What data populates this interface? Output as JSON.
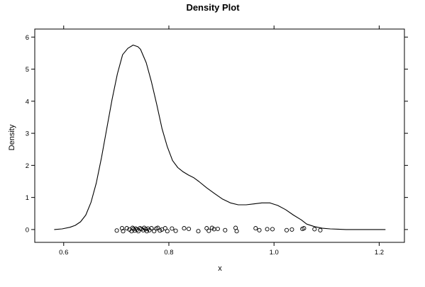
{
  "chart_data": {
    "type": "line",
    "title": "Density Plot",
    "xlabel": "x",
    "ylabel": "Density",
    "xlim": [
      0.545,
      1.248
    ],
    "ylim": [
      -0.4,
      6.25
    ],
    "grid": false,
    "x_ticks": [
      0.6,
      0.8,
      1.0,
      1.2
    ],
    "x_tick_labels": [
      "0.6",
      "0.8",
      "1.0",
      "1.2"
    ],
    "y_ticks": [
      0,
      1,
      2,
      3,
      4,
      5,
      6
    ],
    "y_tick_labels": [
      "0",
      "1",
      "2",
      "3",
      "4",
      "5",
      "6"
    ],
    "series": [
      {
        "type": "line",
        "x": [
          0.582,
          0.597,
          0.612,
          0.622,
          0.632,
          0.642,
          0.652,
          0.662,
          0.672,
          0.682,
          0.692,
          0.702,
          0.712,
          0.722,
          0.732,
          0.741,
          0.746,
          0.757,
          0.767,
          0.777,
          0.787,
          0.797,
          0.807,
          0.817,
          0.827,
          0.837,
          0.847,
          0.857,
          0.872,
          0.887,
          0.902,
          0.917,
          0.932,
          0.947,
          0.962,
          0.977,
          0.992,
          1.007,
          1.022,
          1.037,
          1.052,
          1.062,
          1.077,
          1.092,
          1.107,
          1.122,
          1.137,
          1.152,
          1.167,
          1.182,
          1.197,
          1.212
        ],
        "y": [
          0.0,
          0.02,
          0.07,
          0.13,
          0.24,
          0.45,
          0.85,
          1.45,
          2.25,
          3.15,
          4.05,
          4.85,
          5.45,
          5.65,
          5.75,
          5.7,
          5.62,
          5.2,
          4.6,
          3.9,
          3.15,
          2.58,
          2.15,
          1.93,
          1.8,
          1.7,
          1.62,
          1.5,
          1.3,
          1.12,
          0.95,
          0.83,
          0.77,
          0.77,
          0.8,
          0.83,
          0.83,
          0.75,
          0.62,
          0.45,
          0.3,
          0.17,
          0.09,
          0.04,
          0.02,
          0.01,
          0.0,
          0.0,
          0.0,
          0.0,
          0.0,
          0.0
        ]
      },
      {
        "type": "scatter",
        "marker": "open-circle",
        "x": [
          0.701,
          0.711,
          0.713,
          0.72,
          0.725,
          0.729,
          0.731,
          0.733,
          0.735,
          0.737,
          0.74,
          0.742,
          0.745,
          0.748,
          0.751,
          0.753,
          0.756,
          0.758,
          0.76,
          0.763,
          0.767,
          0.772,
          0.776,
          0.779,
          0.783,
          0.787,
          0.793,
          0.797,
          0.806,
          0.813,
          0.829,
          0.838,
          0.856,
          0.872,
          0.876,
          0.882,
          0.886,
          0.893,
          0.907,
          0.927,
          0.929,
          0.965,
          0.972,
          0.987,
          0.997,
          1.024,
          1.034,
          1.054,
          1.057,
          1.077,
          1.088
        ],
        "y": [
          -0.03,
          0.04,
          -0.05,
          0.04,
          0.0,
          -0.05,
          0.05,
          0.02,
          -0.03,
          0.03,
          0.0,
          -0.05,
          0.04,
          0.02,
          -0.02,
          0.05,
          0.01,
          -0.05,
          0.03,
          -0.02,
          0.04,
          -0.05,
          0.03,
          0.05,
          -0.03,
          0.0,
          0.04,
          -0.05,
          0.03,
          -0.04,
          0.04,
          0.02,
          -0.05,
          0.04,
          -0.04,
          0.05,
          0.01,
          0.02,
          -0.02,
          0.05,
          -0.05,
          0.04,
          -0.02,
          0.01,
          0.01,
          -0.02,
          0.0,
          0.02,
          0.04,
          0.01,
          -0.02
        ]
      }
    ]
  }
}
